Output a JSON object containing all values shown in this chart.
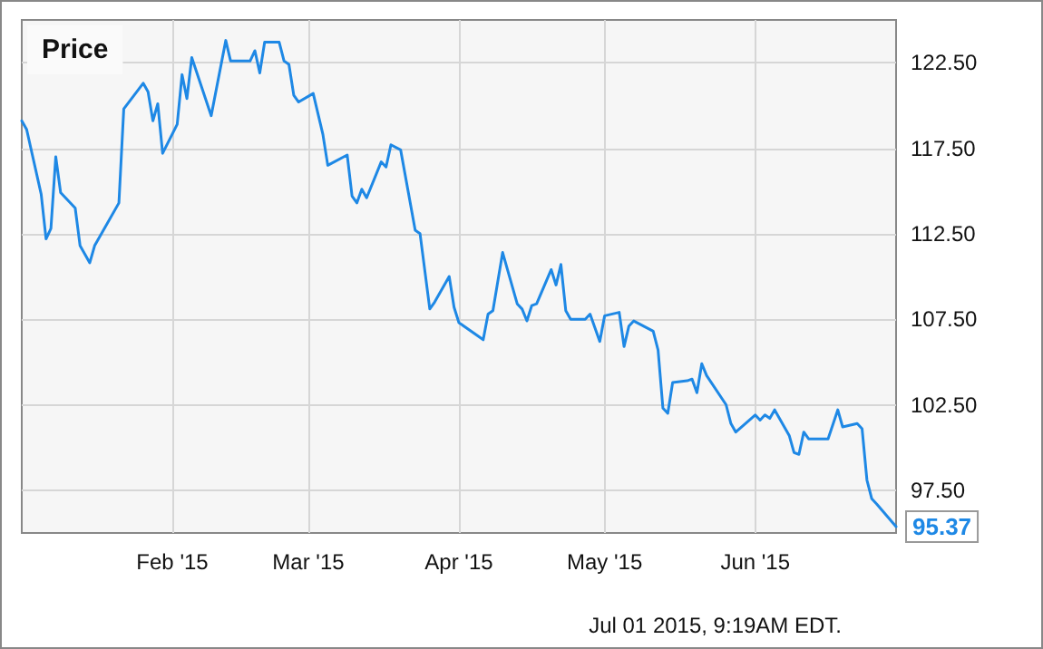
{
  "chart_data": {
    "type": "line",
    "title": "Price",
    "annotations": [
      "Jul 01 2015, 9:19AM EDT."
    ],
    "x": [
      "2015-01-01",
      "2015-01-02",
      "2015-01-05",
      "2015-01-06",
      "2015-01-07",
      "2015-01-08",
      "2015-01-09",
      "2015-01-12",
      "2015-01-13",
      "2015-01-15",
      "2015-01-16",
      "2015-01-21",
      "2015-01-22",
      "2015-01-26",
      "2015-01-27",
      "2015-01-28",
      "2015-01-29",
      "2015-01-30",
      "2015-02-02",
      "2015-02-03",
      "2015-02-04",
      "2015-02-05",
      "2015-02-09",
      "2015-02-12",
      "2015-02-13",
      "2015-02-17",
      "2015-02-18",
      "2015-02-19",
      "2015-02-20",
      "2015-02-23",
      "2015-02-24",
      "2015-02-25",
      "2015-02-26",
      "2015-02-27",
      "2015-03-02",
      "2015-03-04",
      "2015-03-05",
      "2015-03-09",
      "2015-03-10",
      "2015-03-11",
      "2015-03-12",
      "2015-03-13",
      "2015-03-16",
      "2015-03-17",
      "2015-03-18",
      "2015-03-20",
      "2015-03-23",
      "2015-03-24",
      "2015-03-26",
      "2015-03-27",
      "2015-03-30",
      "2015-03-31",
      "2015-04-01",
      "2015-04-06",
      "2015-04-07",
      "2015-04-08",
      "2015-04-10",
      "2015-04-13",
      "2015-04-14",
      "2015-04-15",
      "2015-04-16",
      "2015-04-17",
      "2015-04-20",
      "2015-04-21",
      "2015-04-22",
      "2015-04-23",
      "2015-04-24",
      "2015-04-27",
      "2015-04-28",
      "2015-04-30",
      "2015-05-01",
      "2015-05-04",
      "2015-05-05",
      "2015-05-06",
      "2015-05-07",
      "2015-05-11",
      "2015-05-12",
      "2015-05-13",
      "2015-05-14",
      "2015-05-15",
      "2015-05-18",
      "2015-05-19",
      "2015-05-20",
      "2015-05-21",
      "2015-05-22",
      "2015-05-26",
      "2015-05-27",
      "2015-05-28",
      "2015-06-01",
      "2015-06-02",
      "2015-06-03",
      "2015-06-04",
      "2015-06-05",
      "2015-06-08",
      "2015-06-09",
      "2015-06-10",
      "2015-06-11",
      "2015-06-12",
      "2015-06-16",
      "2015-06-18",
      "2015-06-19",
      "2015-06-22",
      "2015-06-23",
      "2015-06-24",
      "2015-06-25",
      "2015-06-26",
      "2015-06-30"
    ],
    "series": [
      {
        "color": "#1e88e5",
        "values": [
          119.1,
          118.6,
          114.8,
          112.2,
          112.8,
          117.0,
          114.9,
          114.0,
          111.8,
          110.8,
          111.8,
          114.3,
          119.8,
          121.3,
          120.8,
          119.1,
          120.1,
          117.2,
          118.9,
          121.8,
          120.4,
          122.8,
          119.4,
          123.8,
          122.6,
          122.6,
          123.2,
          121.9,
          123.7,
          123.7,
          122.6,
          122.4,
          120.6,
          120.2,
          120.7,
          118.3,
          116.5,
          117.1,
          114.7,
          114.3,
          115.1,
          114.6,
          116.7,
          116.4,
          117.7,
          117.4,
          112.7,
          112.5,
          108.1,
          108.5,
          110.0,
          108.2,
          107.3,
          106.3,
          107.8,
          108.0,
          111.4,
          108.4,
          108.1,
          107.4,
          108.3,
          108.4,
          110.4,
          109.5,
          110.7,
          108.0,
          107.5,
          107.5,
          107.8,
          106.2,
          107.7,
          107.9,
          105.9,
          107.1,
          107.4,
          106.8,
          105.7,
          102.3,
          102.0,
          103.8,
          103.9,
          104.0,
          103.2,
          104.9,
          104.2,
          102.5,
          101.4,
          100.9,
          101.9,
          101.6,
          101.9,
          101.7,
          102.2,
          100.7,
          99.7,
          99.6,
          100.9,
          100.5,
          100.5,
          102.2,
          101.2,
          101.4,
          101.1,
          98.1,
          97.0,
          96.7,
          95.37
        ],
        "value_labels": [
          null,
          null,
          null,
          null,
          null,
          null,
          null,
          null,
          null,
          null,
          null,
          null,
          null,
          null,
          null,
          null,
          null,
          null,
          null,
          null,
          null,
          null,
          null,
          null,
          null,
          null,
          null,
          null,
          null,
          null,
          null,
          null,
          null,
          null,
          null,
          null,
          null,
          null,
          null,
          null,
          null,
          null,
          null,
          null,
          null,
          null,
          null,
          null,
          null,
          null,
          null,
          null,
          null,
          null,
          null,
          null,
          null,
          null,
          null,
          null,
          null,
          null,
          null,
          null,
          null,
          null,
          null,
          null,
          null,
          null,
          null,
          null,
          null,
          null,
          null,
          null,
          null,
          null,
          null,
          null,
          null,
          null,
          null,
          null,
          null,
          null,
          null,
          null,
          null,
          null,
          null,
          null,
          null,
          null,
          null,
          null,
          null,
          null,
          null,
          null,
          null,
          null,
          null,
          null,
          null,
          null,
          "95.37"
        ]
      }
    ],
    "xlim": [
      "2015-01-01",
      "2015-06-30"
    ],
    "xticks": [
      {
        "value": "2015-02-01",
        "label": "Feb '15"
      },
      {
        "value": "2015-03-01",
        "label": "Mar '15"
      },
      {
        "value": "2015-04-01",
        "label": "Apr '15"
      },
      {
        "value": "2015-05-01",
        "label": "May '15"
      },
      {
        "value": "2015-06-01",
        "label": "Jun '15"
      }
    ],
    "ylim": [
      95,
      125
    ],
    "yticks": [
      {
        "value": 97.5,
        "label": "97.50"
      },
      {
        "value": 102.5,
        "label": "102.50"
      },
      {
        "value": 107.5,
        "label": "107.50"
      },
      {
        "value": 112.5,
        "label": "112.50"
      },
      {
        "value": 117.5,
        "label": "117.50"
      },
      {
        "value": 122.5,
        "label": "122.50"
      }
    ],
    "grid": true,
    "marker": "none",
    "line_style": "solid"
  }
}
